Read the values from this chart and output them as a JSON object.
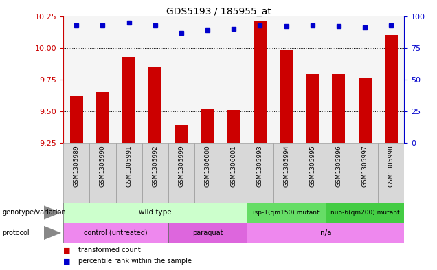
{
  "title": "GDS5193 / 185955_at",
  "samples": [
    "GSM1305989",
    "GSM1305990",
    "GSM1305991",
    "GSM1305992",
    "GSM1305999",
    "GSM1306000",
    "GSM1306001",
    "GSM1305993",
    "GSM1305994",
    "GSM1305995",
    "GSM1305996",
    "GSM1305997",
    "GSM1305998"
  ],
  "red_values": [
    9.62,
    9.65,
    9.93,
    9.85,
    9.39,
    9.52,
    9.51,
    10.21,
    9.98,
    9.8,
    9.8,
    9.76,
    10.1
  ],
  "blue_values": [
    93,
    93,
    95,
    93,
    87,
    89,
    90,
    93,
    92,
    93,
    92,
    91,
    93
  ],
  "ylim_left": [
    9.25,
    10.25
  ],
  "ylim_right": [
    0,
    100
  ],
  "yticks_left": [
    9.25,
    9.5,
    9.75,
    10.0,
    10.25
  ],
  "yticks_right": [
    0,
    25,
    50,
    75,
    100
  ],
  "grid_values": [
    9.5,
    9.75,
    10.0
  ],
  "genotype_groups": [
    {
      "label": "wild type",
      "start": 0,
      "end": 7,
      "color": "#ccffcc"
    },
    {
      "label": "isp-1(qm150) mutant",
      "start": 7,
      "end": 10,
      "color": "#66dd66"
    },
    {
      "label": "nuo-6(qm200) mutant",
      "start": 10,
      "end": 13,
      "color": "#44cc44"
    }
  ],
  "protocol_groups": [
    {
      "label": "control (untreated)",
      "start": 0,
      "end": 4,
      "color": "#ee88ee"
    },
    {
      "label": "paraquat",
      "start": 4,
      "end": 7,
      "color": "#dd66dd"
    },
    {
      "label": "n/a",
      "start": 7,
      "end": 13,
      "color": "#ee88ee"
    }
  ],
  "left_axis_color": "#cc0000",
  "right_axis_color": "#0000cc",
  "bar_color": "#cc0000",
  "dot_color": "#0000cc",
  "plot_bg_color": "#f5f5f5",
  "sample_box_color": "#d8d8d8",
  "arrow_color": "#888888"
}
